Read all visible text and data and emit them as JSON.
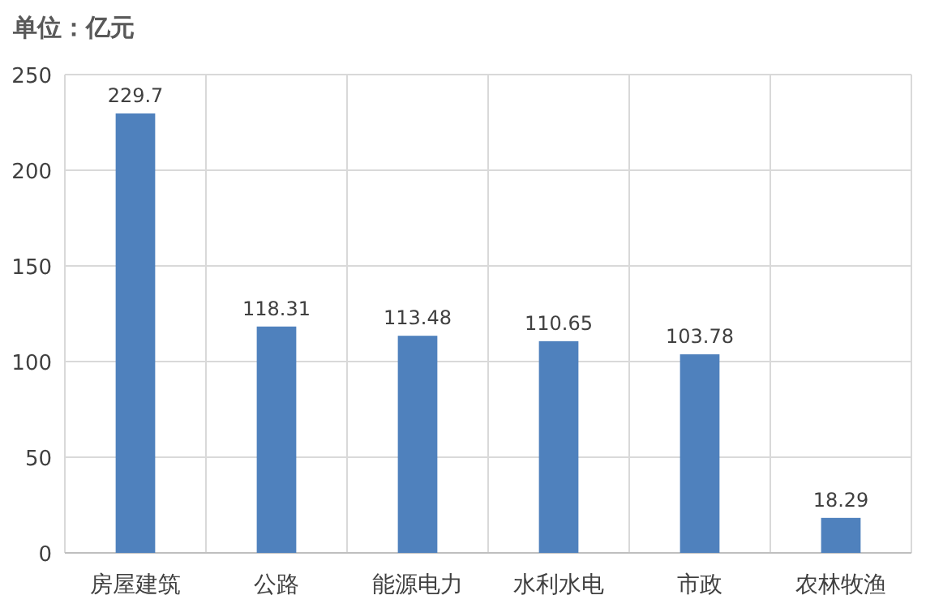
{
  "chart_data": {
    "type": "bar",
    "title": "单位：亿元",
    "categories": [
      "房屋建筑",
      "公路",
      "能源电力",
      "水利水电",
      "市政",
      "农林牧渔"
    ],
    "values": [
      229.7,
      118.31,
      113.48,
      110.65,
      103.78,
      18.29
    ],
    "color": "#4f81bd",
    "ylim": [
      0,
      250
    ],
    "yticks": [
      0,
      50,
      100,
      150,
      200,
      250
    ],
    "grid": true,
    "data_labels": true
  }
}
